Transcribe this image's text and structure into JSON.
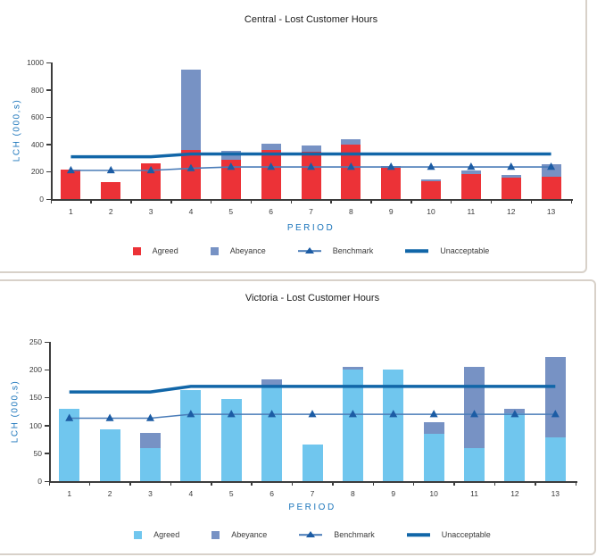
{
  "page": {
    "background": "#ffffff",
    "panel_border_color": "#d8d1c9"
  },
  "colors": {
    "agreed_central": "#ec3237",
    "agreed_victoria": "#70c6ee",
    "abeyance": "#7792c4",
    "benchmark_line": "#4a7cb8",
    "benchmark_marker": "#1c5ca4",
    "unacceptable": "#1166a8",
    "axis_line": "#3c3c3c",
    "axis_text": "#3a3a3a",
    "blue_label": "#1b75bb",
    "title_text": "#1a1a1a"
  },
  "chart_data": [
    {
      "type": "bar",
      "stacked": true,
      "grid": false,
      "legend_position": "bottom",
      "title": "Central - Lost Customer Hours",
      "xlabel": "PERIOD",
      "ylabel": "LCH (000,s)",
      "categories": [
        "1",
        "2",
        "3",
        "4",
        "5",
        "6",
        "7",
        "8",
        "9",
        "10",
        "11",
        "12",
        "13"
      ],
      "ylim": [
        0,
        1000
      ],
      "yticks": [
        0,
        200,
        400,
        600,
        800,
        1000
      ],
      "series": [
        {
          "name": "Agreed",
          "kind": "bar",
          "color": "#ec3237",
          "values": [
            215,
            125,
            260,
            360,
            290,
            360,
            345,
            400,
            230,
            130,
            185,
            155,
            165
          ]
        },
        {
          "name": "Abeyance",
          "kind": "bar",
          "color": "#7792c4",
          "values": [
            0,
            0,
            0,
            590,
            65,
            45,
            50,
            35,
            15,
            15,
            25,
            20,
            90
          ]
        },
        {
          "name": "Benchmark",
          "kind": "line-marker",
          "color": "#4a7cb8",
          "marker_color": "#1c5ca4",
          "values": [
            210,
            210,
            210,
            225,
            235,
            235,
            235,
            235,
            235,
            235,
            235,
            235,
            235
          ]
        },
        {
          "name": "Unacceptable",
          "kind": "line",
          "color": "#1166a8",
          "values": [
            310,
            310,
            310,
            330,
            330,
            330,
            330,
            330,
            330,
            330,
            330,
            330,
            330
          ]
        }
      ]
    },
    {
      "type": "bar",
      "stacked": true,
      "grid": false,
      "legend_position": "bottom",
      "title": "Victoria - Lost Customer Hours",
      "xlabel": "PERIOD",
      "ylabel": "LCH (000,s)",
      "categories": [
        "1",
        "2",
        "3",
        "4",
        "5",
        "6",
        "7",
        "8",
        "9",
        "10",
        "11",
        "12",
        "13"
      ],
      "ylim": [
        0,
        250
      ],
      "yticks": [
        0,
        50,
        100,
        150,
        200,
        250
      ],
      "series": [
        {
          "name": "Agreed",
          "kind": "bar",
          "color": "#70c6ee",
          "values": [
            130,
            93,
            60,
            163,
            148,
            170,
            65,
            200,
            200,
            85,
            60,
            122,
            78
          ]
        },
        {
          "name": "Abeyance",
          "kind": "bar",
          "color": "#7792c4",
          "values": [
            0,
            0,
            27,
            0,
            0,
            13,
            0,
            5,
            0,
            20,
            145,
            8,
            145
          ]
        },
        {
          "name": "Benchmark",
          "kind": "line-marker",
          "color": "#4a7cb8",
          "marker_color": "#1c5ca4",
          "values": [
            113,
            113,
            113,
            120,
            120,
            120,
            120,
            120,
            120,
            120,
            120,
            120,
            120
          ]
        },
        {
          "name": "Unacceptable",
          "kind": "line",
          "color": "#1166a8",
          "values": [
            160,
            160,
            160,
            170,
            170,
            170,
            170,
            170,
            170,
            170,
            170,
            170,
            170
          ]
        }
      ]
    }
  ]
}
